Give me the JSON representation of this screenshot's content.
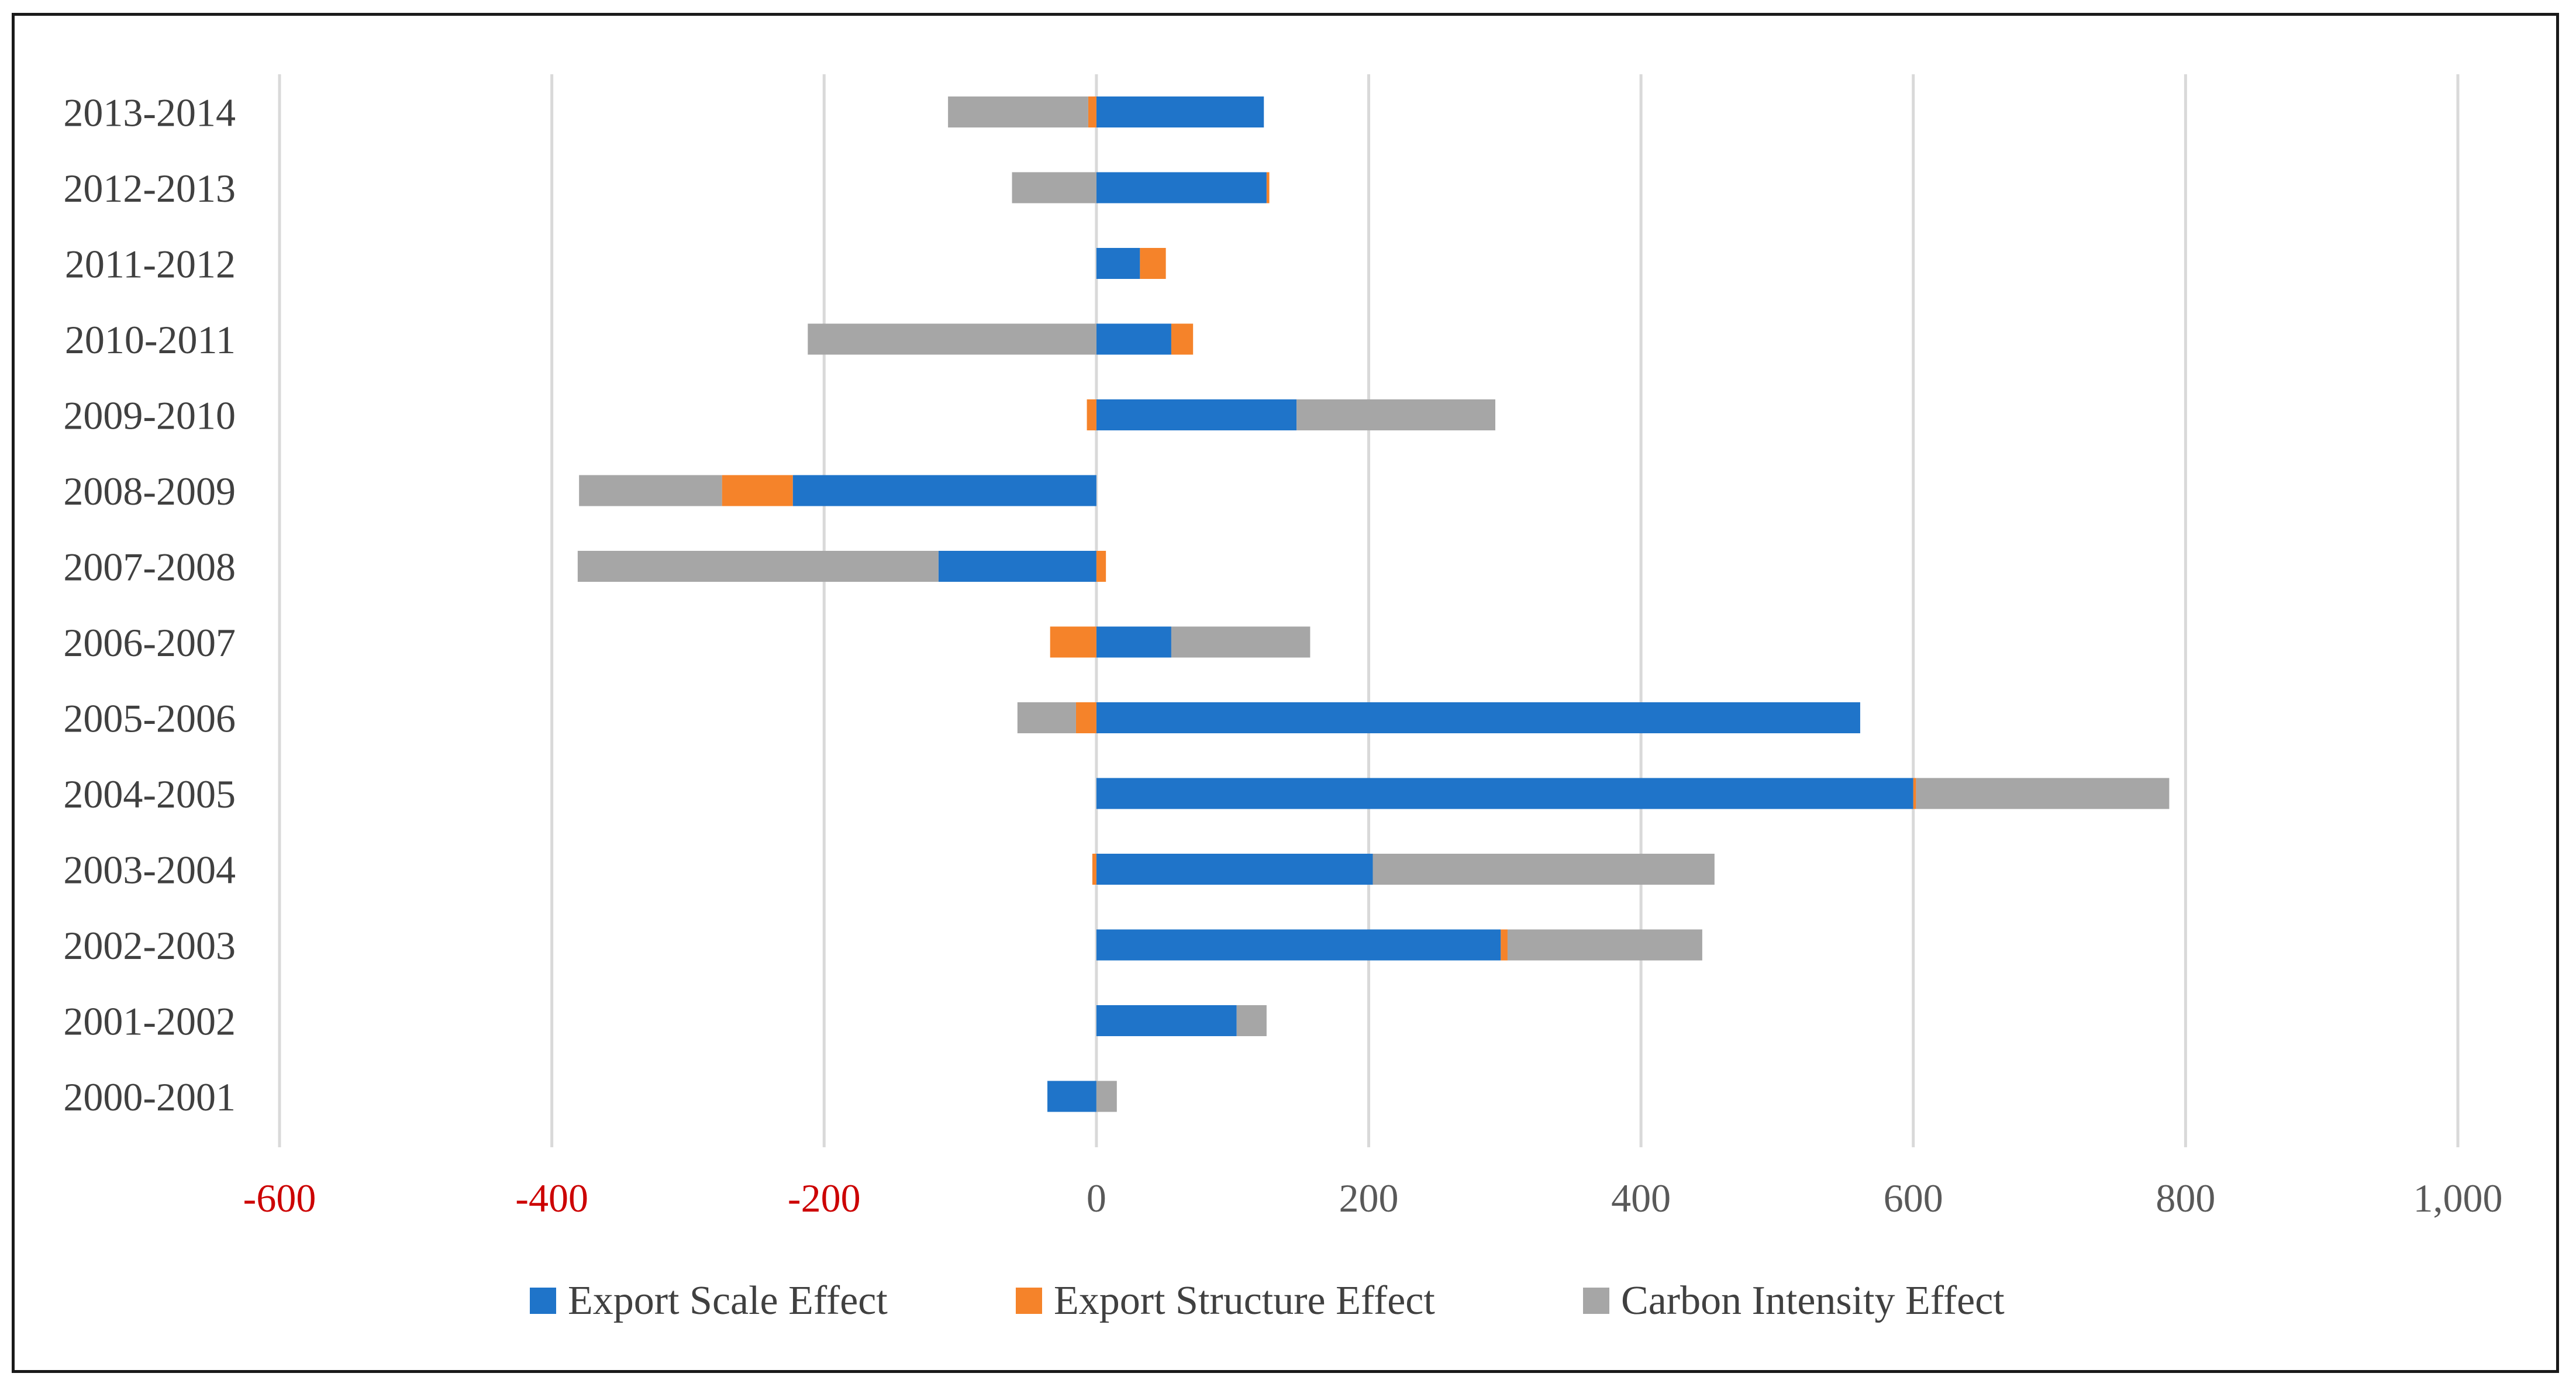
{
  "chart_data": {
    "type": "bar",
    "orientation": "horizontal",
    "stacked": true,
    "title": "",
    "xlabel": "",
    "ylabel": "",
    "xlim": [
      -600,
      1000
    ],
    "x_ticks": [
      -600,
      -400,
      -200,
      0,
      200,
      400,
      600,
      800,
      1000
    ],
    "x_tick_labels": [
      "-600",
      "-400",
      "-200",
      "0",
      "200",
      "400",
      "600",
      "800",
      "1,000"
    ],
    "negative_tick_color": "#cc0000",
    "positive_tick_color": "#595959",
    "grid": true,
    "legend_position": "bottom",
    "categories": [
      "2000-2001",
      "2001-2002",
      "2002-2003",
      "2003-2004",
      "2004-2005",
      "2005-2006",
      "2006-2007",
      "2007-2008",
      "2008-2009",
      "2009-2010",
      "2010-2011",
      "2011-2012",
      "2012-2013",
      "2013-2014"
    ],
    "series": [
      {
        "name": "Export Scale Effect",
        "color": "#1f74c9",
        "values": [
          -36,
          103,
          297,
          203,
          600,
          561,
          55,
          -116,
          -223,
          147,
          55,
          32,
          125,
          123
        ]
      },
      {
        "name": "Export Structure Effect",
        "color": "#f5832a",
        "values": [
          0,
          0,
          5,
          -3,
          2,
          -15,
          -34,
          7,
          -52,
          -7,
          16,
          19,
          2,
          -6
        ]
      },
      {
        "name": "Carbon Intensity Effect",
        "color": "#a6a6a6",
        "values": [
          15,
          22,
          143,
          251,
          186,
          -43,
          102,
          -265,
          -105,
          146,
          -212,
          0,
          -62,
          -103
        ]
      }
    ]
  }
}
